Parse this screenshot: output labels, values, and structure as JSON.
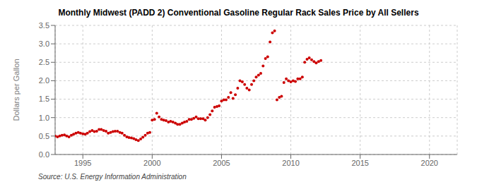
{
  "chart_data": {
    "type": "scatter",
    "title": "Monthly Midwest (PADD 2) Conventional Gasoline Regular Rack Sales Price by All Sellers",
    "y_label": "Dollars per Gallon",
    "annotations": [
      "Source: U.S. Energy Information Administration"
    ],
    "color": "#cc0000",
    "grid": true,
    "xlim": [
      1993,
      2022
    ],
    "ylim": [
      0.0,
      3.5
    ],
    "xticks": [
      1995,
      2000,
      2005,
      2010,
      2015,
      2020
    ],
    "yticks": [
      {
        "value": 0.0,
        "label": "0.0"
      },
      0.5,
      {
        "value": 1.0,
        "label": "1.0"
      },
      1.5,
      {
        "value": 2.0,
        "label": "2.0"
      },
      2.5,
      {
        "value": 3.0,
        "label": "3.0"
      },
      3.5
    ],
    "x": [
      1993.0,
      1993.17,
      1993.33,
      1993.5,
      1993.67,
      1993.83,
      1994.0,
      1994.17,
      1994.33,
      1994.5,
      1994.67,
      1994.83,
      1995.0,
      1995.17,
      1995.33,
      1995.5,
      1995.67,
      1995.83,
      1996.0,
      1996.17,
      1996.33,
      1996.5,
      1996.67,
      1996.83,
      1997.0,
      1997.17,
      1997.33,
      1997.5,
      1997.67,
      1997.83,
      1998.0,
      1998.17,
      1998.33,
      1998.5,
      1998.67,
      1998.83,
      1999.0,
      1999.17,
      1999.33,
      1999.5,
      1999.67,
      1999.83,
      2000.0,
      2000.17,
      2000.33,
      2000.5,
      2000.67,
      2000.83,
      2001.0,
      2001.17,
      2001.33,
      2001.5,
      2001.67,
      2001.83,
      2002.0,
      2002.17,
      2002.33,
      2002.5,
      2002.67,
      2002.83,
      2003.0,
      2003.17,
      2003.33,
      2003.5,
      2003.67,
      2003.83,
      2004.0,
      2004.17,
      2004.33,
      2004.5,
      2004.67,
      2004.83,
      2005.0,
      2005.17,
      2005.33,
      2005.5,
      2005.67,
      2005.83,
      2006.0,
      2006.17,
      2006.33,
      2006.5,
      2006.67,
      2006.83,
      2007.0,
      2007.17,
      2007.33,
      2007.5,
      2007.67,
      2007.83,
      2008.0,
      2008.17,
      2008.33,
      2008.5,
      2008.67,
      2008.83,
      2009.0,
      2009.17,
      2009.33,
      2009.5,
      2009.67,
      2009.83,
      2010.0,
      2010.17,
      2010.33,
      2010.5,
      2010.67,
      2010.83,
      2011.0,
      2011.17,
      2011.33,
      2011.5,
      2011.67,
      2011.83,
      2012.0,
      2012.17
    ],
    "values": [
      0.5,
      0.48,
      0.5,
      0.52,
      0.53,
      0.5,
      0.48,
      0.52,
      0.55,
      0.58,
      0.6,
      0.58,
      0.56,
      0.55,
      0.58,
      0.62,
      0.65,
      0.62,
      0.63,
      0.68,
      0.68,
      0.65,
      0.63,
      0.58,
      0.6,
      0.62,
      0.63,
      0.63,
      0.6,
      0.58,
      0.52,
      0.48,
      0.46,
      0.45,
      0.43,
      0.4,
      0.38,
      0.42,
      0.47,
      0.52,
      0.58,
      0.6,
      0.93,
      0.95,
      1.12,
      1.02,
      0.95,
      0.93,
      0.92,
      0.88,
      0.9,
      0.88,
      0.85,
      0.82,
      0.82,
      0.85,
      0.88,
      0.9,
      0.95,
      0.95,
      0.98,
      1.02,
      0.97,
      0.97,
      0.97,
      0.93,
      1.0,
      1.08,
      1.18,
      1.28,
      1.3,
      1.32,
      1.45,
      1.48,
      1.48,
      1.55,
      1.68,
      1.52,
      1.62,
      1.8,
      2.0,
      1.97,
      1.9,
      1.8,
      1.75,
      1.9,
      2.0,
      2.1,
      2.15,
      2.2,
      2.4,
      2.6,
      2.65,
      3.05,
      3.3,
      3.35,
      1.48,
      1.55,
      1.58,
      1.95,
      2.05,
      2.0,
      1.97,
      2.0,
      1.98,
      2.05,
      2.05,
      2.1,
      2.5,
      2.58,
      2.62,
      2.57,
      2.52,
      2.48,
      2.52,
      2.55
    ]
  }
}
